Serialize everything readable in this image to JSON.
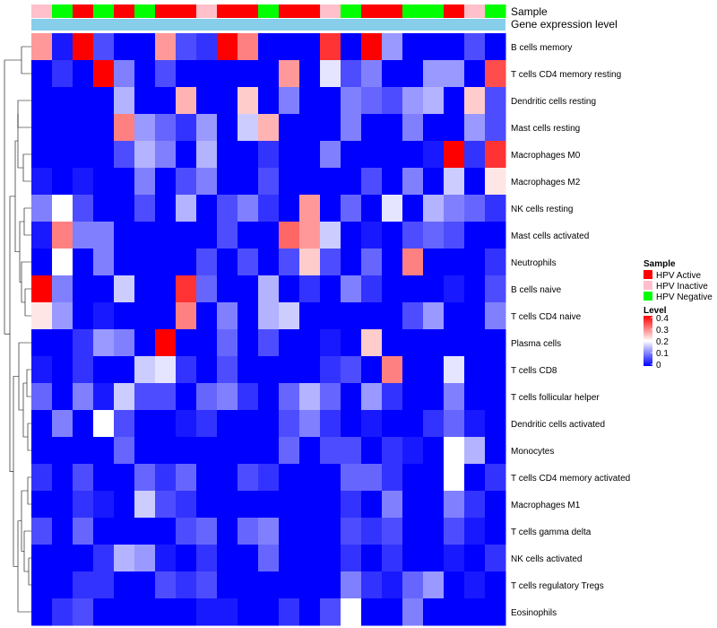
{
  "chart_data": {
    "type": "heatmap",
    "annotation_rows": [
      "Sample",
      "Gene expression level"
    ],
    "legend": {
      "sample_title": "Sample",
      "sample_groups": [
        {
          "label": "HPV Active",
          "color": "#ff0000"
        },
        {
          "label": "HPV Inactive",
          "color": "#ffc0cb"
        },
        {
          "label": "HPV Negative",
          "color": "#00ff00"
        }
      ],
      "level_title": "Level",
      "level_ticks": [
        "0.4",
        "0.3",
        "0.2",
        "0.1",
        "0"
      ],
      "level_colors": {
        "low": "#0000ff",
        "mid": "#ffffff",
        "high": "#ff0000"
      },
      "level_range": [
        0,
        0.4
      ]
    },
    "sample_annotation": [
      "HPV Inactive",
      "HPV Negative",
      "HPV Active",
      "HPV Negative",
      "HPV Active",
      "HPV Negative",
      "HPV Active",
      "HPV Active",
      "HPV Inactive",
      "HPV Active",
      "HPV Active",
      "HPV Negative",
      "HPV Active",
      "HPV Active",
      "HPV Inactive",
      "HPV Negative",
      "HPV Active",
      "HPV Active",
      "HPV Negative",
      "HPV Negative",
      "HPV Active",
      "HPV Inactive",
      "HPV Negative"
    ],
    "gene_expression_annotation_color": "#87ceeb",
    "rows": [
      "B cells memory",
      "T cells CD4 memory resting",
      "Dendritic cells resting",
      "Mast cells resting",
      "Macrophages M0",
      "Macrophages M2",
      "NK cells resting",
      "Mast cells activated",
      "Neutrophils",
      "B cells naive",
      "T cells CD4 naive",
      "Plasma cells",
      "T cells CD8",
      "T cells follicular helper",
      "Dendritic cells activated",
      "Monocytes",
      "T cells CD4 memory activated",
      "Macrophages M1",
      "T cells gamma delta",
      "NK cells activated",
      "T cells regulatory  Tregs",
      "Eosinophils"
    ],
    "values": [
      [
        0.28,
        0.02,
        0.4,
        0.06,
        0.0,
        0.0,
        0.28,
        0.06,
        0.04,
        0.4,
        0.3,
        0.0,
        0.0,
        0.0,
        0.36,
        0.0,
        0.4,
        0.12,
        0.0,
        0.0,
        0.0,
        0.06,
        0.0
      ],
      [
        0.0,
        0.04,
        0.0,
        0.4,
        0.1,
        0.0,
        0.06,
        0.0,
        0.0,
        0.0,
        0.0,
        0.0,
        0.28,
        0.0,
        0.18,
        0.06,
        0.1,
        0.0,
        0.0,
        0.12,
        0.12,
        0.0,
        0.34
      ],
      [
        0.0,
        0.0,
        0.0,
        0.0,
        0.14,
        0.0,
        0.0,
        0.26,
        0.0,
        0.0,
        0.24,
        0.0,
        0.1,
        0.0,
        0.0,
        0.1,
        0.08,
        0.06,
        0.12,
        0.14,
        0.0,
        0.24,
        0.06
      ],
      [
        0.0,
        0.0,
        0.0,
        0.0,
        0.3,
        0.12,
        0.08,
        0.04,
        0.12,
        0.0,
        0.16,
        0.26,
        0.0,
        0.0,
        0.0,
        0.1,
        0.0,
        0.0,
        0.1,
        0.0,
        0.0,
        0.12,
        0.06
      ],
      [
        0.0,
        0.0,
        0.0,
        0.0,
        0.06,
        0.14,
        0.1,
        0.0,
        0.14,
        0.0,
        0.0,
        0.04,
        0.0,
        0.0,
        0.1,
        0.0,
        0.0,
        0.0,
        0.0,
        0.02,
        0.4,
        0.04,
        0.36
      ],
      [
        0.02,
        0.0,
        0.02,
        0.0,
        0.0,
        0.1,
        0.0,
        0.06,
        0.1,
        0.0,
        0.0,
        0.06,
        0.0,
        0.0,
        0.0,
        0.0,
        0.06,
        0.0,
        0.1,
        0.0,
        0.16,
        0.0,
        0.22
      ],
      [
        0.1,
        0.2,
        0.06,
        0.0,
        0.0,
        0.06,
        0.0,
        0.14,
        0.0,
        0.06,
        0.1,
        0.04,
        0.0,
        0.28,
        0.0,
        0.08,
        0.0,
        0.18,
        0.0,
        0.14,
        0.1,
        0.08,
        0.04
      ],
      [
        0.02,
        0.3,
        0.1,
        0.1,
        0.0,
        0.0,
        0.0,
        0.0,
        0.0,
        0.06,
        0.0,
        0.0,
        0.32,
        0.28,
        0.16,
        0.0,
        0.02,
        0.0,
        0.06,
        0.08,
        0.06,
        0.0,
        0.0
      ],
      [
        0.0,
        0.2,
        0.0,
        0.1,
        0.0,
        0.0,
        0.0,
        0.0,
        0.06,
        0.0,
        0.06,
        0.0,
        0.06,
        0.24,
        0.06,
        0.0,
        0.08,
        0.0,
        0.3,
        0.0,
        0.0,
        0.0,
        0.04
      ],
      [
        0.4,
        0.1,
        0.0,
        0.0,
        0.16,
        0.0,
        0.0,
        0.36,
        0.08,
        0.0,
        0.0,
        0.14,
        0.0,
        0.04,
        0.0,
        0.1,
        0.04,
        0.0,
        0.0,
        0.0,
        0.02,
        0.0,
        0.06
      ],
      [
        0.22,
        0.12,
        0.0,
        0.02,
        0.0,
        0.0,
        0.0,
        0.3,
        0.0,
        0.1,
        0.0,
        0.14,
        0.16,
        0.0,
        0.0,
        0.0,
        0.0,
        0.0,
        0.06,
        0.12,
        0.0,
        0.0,
        0.1
      ],
      [
        0.0,
        0.0,
        0.04,
        0.12,
        0.1,
        0.0,
        0.4,
        0.0,
        0.0,
        0.08,
        0.0,
        0.06,
        0.0,
        0.0,
        0.02,
        0.0,
        0.24,
        0.0,
        0.0,
        0.0,
        0.0,
        0.0,
        0.0
      ],
      [
        0.02,
        0.0,
        0.04,
        0.0,
        0.0,
        0.16,
        0.18,
        0.04,
        0.0,
        0.06,
        0.0,
        0.0,
        0.0,
        0.0,
        0.04,
        0.06,
        0.0,
        0.3,
        0.0,
        0.0,
        0.18,
        0.0,
        0.0
      ],
      [
        0.08,
        0.0,
        0.1,
        0.02,
        0.16,
        0.06,
        0.06,
        0.0,
        0.08,
        0.1,
        0.04,
        0.0,
        0.08,
        0.14,
        0.08,
        0.0,
        0.12,
        0.04,
        0.0,
        0.0,
        0.1,
        0.0,
        0.0
      ],
      [
        0.0,
        0.1,
        0.0,
        0.2,
        0.06,
        0.0,
        0.0,
        0.02,
        0.04,
        0.0,
        0.0,
        0.0,
        0.06,
        0.1,
        0.04,
        0.0,
        0.02,
        0.0,
        0.0,
        0.04,
        0.08,
        0.02,
        0.0
      ],
      [
        0.0,
        0.0,
        0.0,
        0.0,
        0.08,
        0.0,
        0.0,
        0.0,
        0.0,
        0.0,
        0.0,
        0.0,
        0.08,
        0.0,
        0.06,
        0.06,
        0.0,
        0.04,
        0.02,
        0.0,
        0.2,
        0.14,
        0.0
      ],
      [
        0.04,
        0.0,
        0.06,
        0.0,
        0.0,
        0.08,
        0.04,
        0.08,
        0.0,
        0.0,
        0.06,
        0.04,
        0.0,
        0.0,
        0.0,
        0.08,
        0.08,
        0.04,
        0.0,
        0.0,
        0.2,
        0.0,
        0.04
      ],
      [
        0.0,
        0.0,
        0.04,
        0.02,
        0.0,
        0.16,
        0.06,
        0.04,
        0.0,
        0.0,
        0.0,
        0.0,
        0.0,
        0.0,
        0.0,
        0.04,
        0.0,
        0.1,
        0.0,
        0.0,
        0.1,
        0.04,
        0.0
      ],
      [
        0.06,
        0.0,
        0.08,
        0.0,
        0.0,
        0.0,
        0.0,
        0.06,
        0.08,
        0.0,
        0.08,
        0.1,
        0.0,
        0.0,
        0.0,
        0.06,
        0.04,
        0.06,
        0.0,
        0.0,
        0.06,
        0.02,
        0.0
      ],
      [
        0.0,
        0.0,
        0.0,
        0.04,
        0.14,
        0.12,
        0.02,
        0.0,
        0.04,
        0.0,
        0.0,
        0.08,
        0.0,
        0.0,
        0.0,
        0.04,
        0.0,
        0.04,
        0.0,
        0.0,
        0.02,
        0.0,
        0.04
      ],
      [
        0.0,
        0.0,
        0.04,
        0.04,
        0.0,
        0.0,
        0.06,
        0.04,
        0.06,
        0.0,
        0.0,
        0.0,
        0.0,
        0.0,
        0.0,
        0.1,
        0.04,
        0.02,
        0.08,
        0.12,
        0.0,
        0.02,
        0.0
      ],
      [
        0.0,
        0.04,
        0.06,
        0.0,
        0.0,
        0.0,
        0.0,
        0.0,
        0.02,
        0.02,
        0.0,
        0.0,
        0.04,
        0.0,
        0.06,
        0.2,
        0.0,
        0.0,
        0.1,
        0.0,
        0.0,
        0.0,
        0.0
      ]
    ]
  }
}
